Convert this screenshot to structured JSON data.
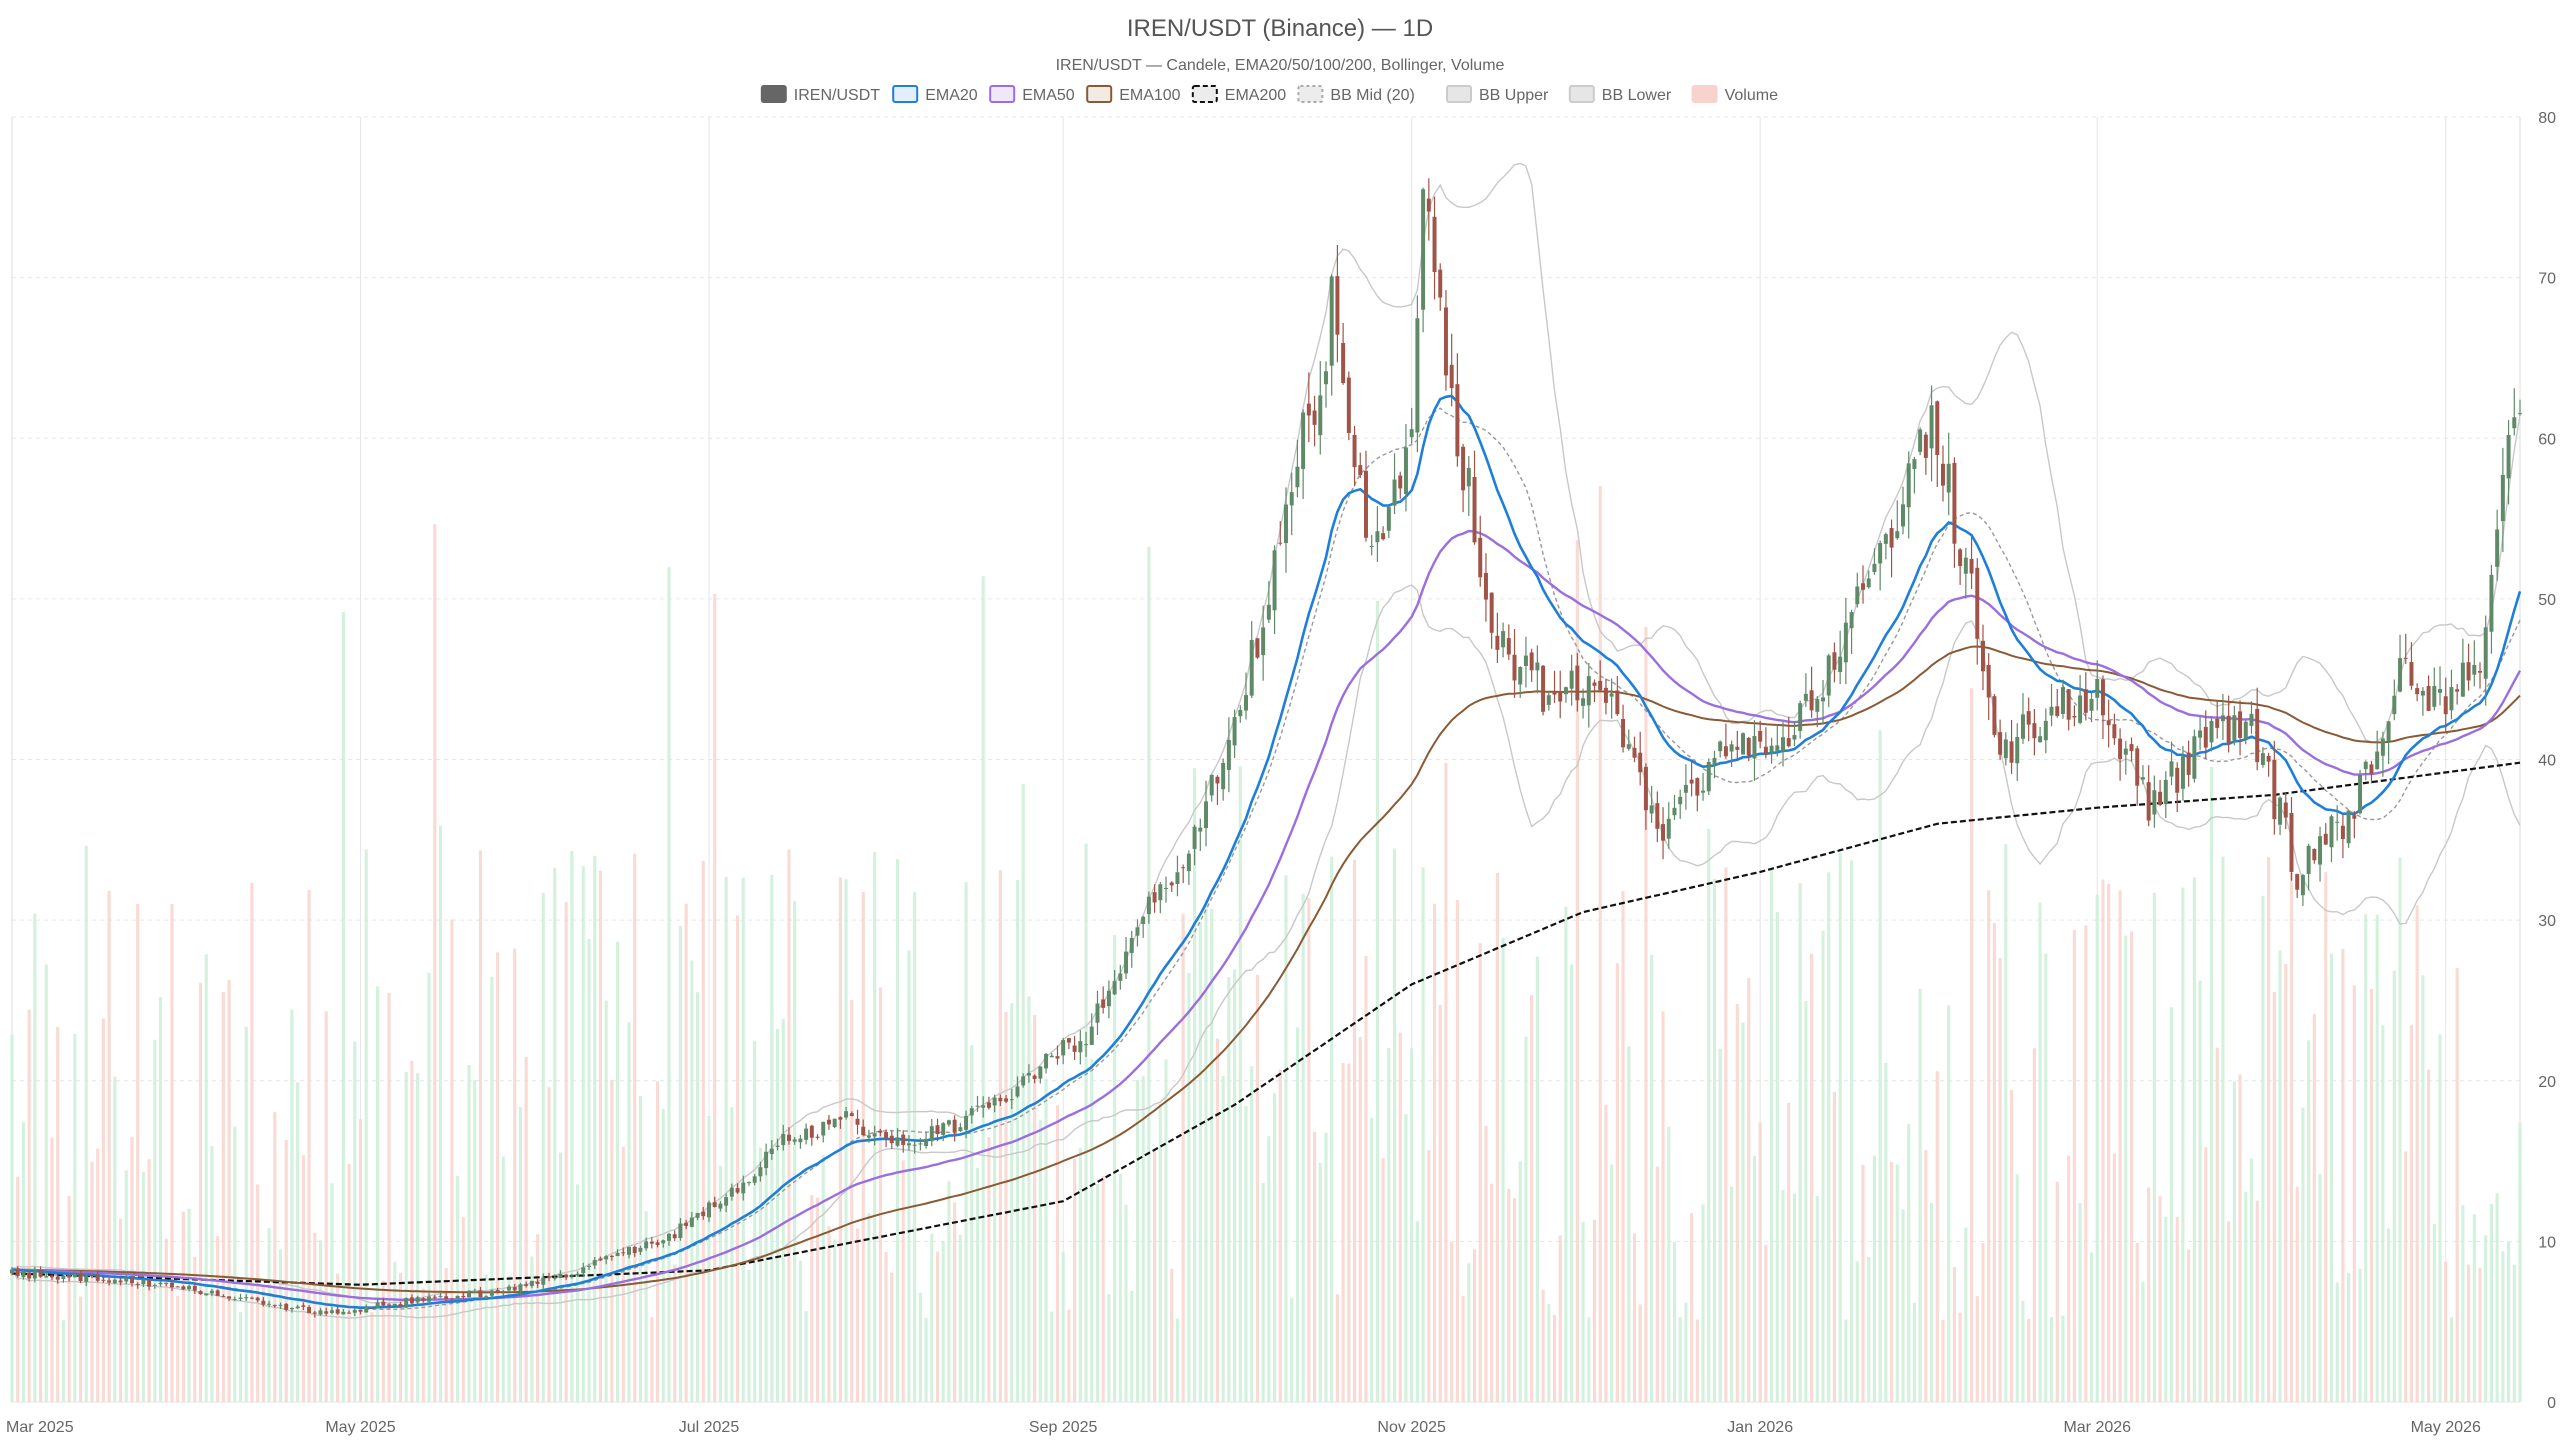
{
  "chart_data": {
    "type": "candlestick",
    "title": "IREN/USDT (Binance) — 1D",
    "subtitle": "IREN/USDT — Candele, EMA20/50/100/200, Bollinger, Volume",
    "legend": {
      "placement": "top-center",
      "entries": [
        {
          "label": "IREN/USDT",
          "fill": "#666666",
          "stroke": "#666666",
          "dash": ""
        },
        {
          "label": "EMA20",
          "fill": "#e3eef8",
          "stroke": "#1e7fd8",
          "dash": ""
        },
        {
          "label": "EMA50",
          "fill": "#efe8f8",
          "stroke": "#9a6ee0",
          "dash": ""
        },
        {
          "label": "EMA100",
          "fill": "#f1ebe4",
          "stroke": "#8a5a34",
          "dash": ""
        },
        {
          "label": "EMA200",
          "fill": "#ececec",
          "stroke": "#111111",
          "dash": "5,3"
        },
        {
          "label": "BB Mid (20)",
          "fill": "#ececec",
          "stroke": "#aaaaaa",
          "dash": "3,3"
        },
        {
          "label": "BB Upper",
          "fill": "#e6e6e6",
          "stroke": "#cccccc",
          "dash": ""
        },
        {
          "label": "BB Lower",
          "fill": "#e6e6e6",
          "stroke": "#cccccc",
          "dash": ""
        },
        {
          "label": "Volume",
          "fill": "#f8d3cd",
          "stroke": "#f8d3cd",
          "dash": ""
        }
      ]
    },
    "x_axis": {
      "start": "2025-03-01",
      "end": "2026-05-14",
      "ticks": [
        {
          "date": "2025-03-01",
          "label": "Mar 2025"
        },
        {
          "date": "2025-05-01",
          "label": "May 2025"
        },
        {
          "date": "2025-07-01",
          "label": "Jul 2025"
        },
        {
          "date": "2025-09-01",
          "label": "Sep 2025"
        },
        {
          "date": "2025-11-01",
          "label": "Nov 2025"
        },
        {
          "date": "2026-01-01",
          "label": "Jan 2026"
        },
        {
          "date": "2026-03-01",
          "label": "Mar 2026"
        },
        {
          "date": "2026-05-01",
          "label": "May 2026"
        }
      ]
    },
    "y_axis": {
      "position": "right",
      "min": 0,
      "max": 80,
      "ticks": [
        0,
        10,
        20,
        30,
        40,
        50,
        60,
        70,
        80
      ]
    },
    "grid": true,
    "colors": {
      "up": "#5f8a68",
      "down": "#a05448",
      "volume_up": "#cdeed8",
      "volume_down": "#f8d3cd",
      "ema20": "#1e7fd8",
      "ema50": "#9a6ee0",
      "ema100": "#8a5a34",
      "ema200": "#111111",
      "bb_mid": "#999999",
      "bb_band": "#c8c8c8"
    },
    "price_path": [
      [
        "2025-03-01",
        8.0
      ],
      [
        "2025-03-20",
        7.6
      ],
      [
        "2025-04-10",
        6.5
      ],
      [
        "2025-04-25",
        5.5
      ],
      [
        "2025-05-10",
        6.3
      ],
      [
        "2025-05-25",
        6.8
      ],
      [
        "2025-06-10",
        8.4
      ],
      [
        "2025-06-25",
        10.5
      ],
      [
        "2025-07-05",
        13.0
      ],
      [
        "2025-07-15",
        16.5
      ],
      [
        "2025-07-25",
        17.5
      ],
      [
        "2025-08-05",
        16.2
      ],
      [
        "2025-08-15",
        17.5
      ],
      [
        "2025-08-25",
        20.0
      ],
      [
        "2025-09-05",
        23.0
      ],
      [
        "2025-09-15",
        30.0
      ],
      [
        "2025-09-25",
        36.0
      ],
      [
        "2025-10-05",
        47.0
      ],
      [
        "2025-10-12",
        58.0
      ],
      [
        "2025-10-18",
        68.0
      ],
      [
        "2025-10-25",
        52.0
      ],
      [
        "2025-11-01",
        61.0
      ],
      [
        "2025-11-03",
        74.0
      ],
      [
        "2025-11-08",
        63.0
      ],
      [
        "2025-11-15",
        48.0
      ],
      [
        "2025-11-25",
        44.0
      ],
      [
        "2025-12-05",
        44.5
      ],
      [
        "2025-12-15",
        35.0
      ],
      [
        "2025-12-25",
        41.0
      ],
      [
        "2026-01-05",
        40.0
      ],
      [
        "2026-01-15",
        47.0
      ],
      [
        "2026-01-25",
        56.0
      ],
      [
        "2026-01-31",
        61.0
      ],
      [
        "2026-02-06",
        52.0
      ],
      [
        "2026-02-12",
        40.0
      ],
      [
        "2026-02-20",
        43.0
      ],
      [
        "2026-03-01",
        44.0
      ],
      [
        "2026-03-10",
        37.0
      ],
      [
        "2026-03-20",
        41.0
      ],
      [
        "2026-03-28",
        42.0
      ],
      [
        "2026-04-05",
        33.0
      ],
      [
        "2026-04-15",
        37.0
      ],
      [
        "2026-04-22",
        45.0
      ],
      [
        "2026-05-01",
        44.0
      ],
      [
        "2026-05-07",
        47.0
      ],
      [
        "2026-05-12",
        60.0
      ]
    ],
    "ema200_path": [
      [
        "2025-03-01",
        8.0
      ],
      [
        "2025-05-01",
        7.3
      ],
      [
        "2025-07-01",
        8.2
      ],
      [
        "2025-09-01",
        12.5
      ],
      [
        "2025-10-01",
        18.5
      ],
      [
        "2025-11-01",
        26.0
      ],
      [
        "2025-12-01",
        30.5
      ],
      [
        "2026-01-01",
        33.0
      ],
      [
        "2026-02-01",
        36.0
      ],
      [
        "2026-03-01",
        37.0
      ],
      [
        "2026-04-01",
        37.8
      ],
      [
        "2026-05-14",
        39.8
      ]
    ],
    "volume": {
      "scale_max": 80
    }
  }
}
